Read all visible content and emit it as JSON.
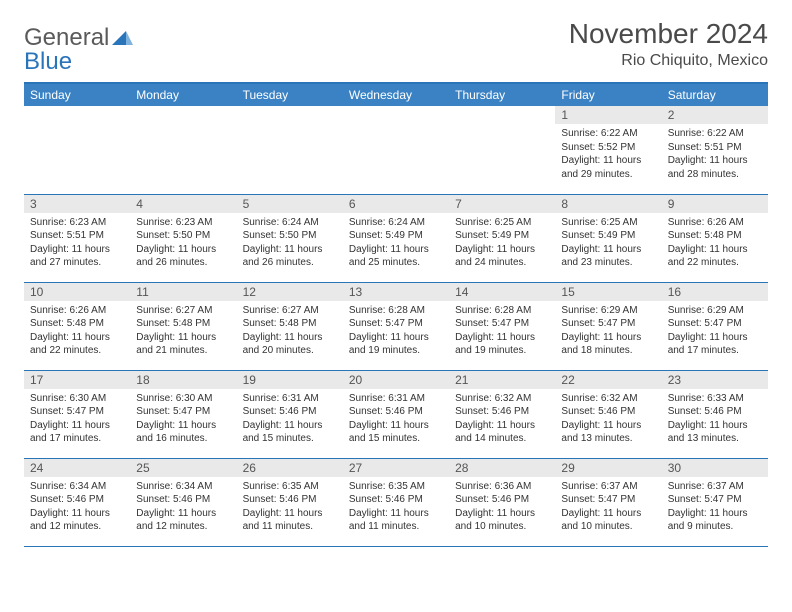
{
  "logo": {
    "word1": "General",
    "word2": "Blue"
  },
  "title": "November 2024",
  "location": "Rio Chiquito, Mexico",
  "colors": {
    "header_bg": "#3b82c4",
    "accent": "#2a74ba",
    "daynum_bg": "#e9e9e9",
    "text": "#333333"
  },
  "weekdays": [
    "Sunday",
    "Monday",
    "Tuesday",
    "Wednesday",
    "Thursday",
    "Friday",
    "Saturday"
  ],
  "weeks": [
    [
      {
        "n": "",
        "sr": "",
        "ss": "",
        "dl": ""
      },
      {
        "n": "",
        "sr": "",
        "ss": "",
        "dl": ""
      },
      {
        "n": "",
        "sr": "",
        "ss": "",
        "dl": ""
      },
      {
        "n": "",
        "sr": "",
        "ss": "",
        "dl": ""
      },
      {
        "n": "",
        "sr": "",
        "ss": "",
        "dl": ""
      },
      {
        "n": "1",
        "sr": "Sunrise: 6:22 AM",
        "ss": "Sunset: 5:52 PM",
        "dl": "Daylight: 11 hours and 29 minutes."
      },
      {
        "n": "2",
        "sr": "Sunrise: 6:22 AM",
        "ss": "Sunset: 5:51 PM",
        "dl": "Daylight: 11 hours and 28 minutes."
      }
    ],
    [
      {
        "n": "3",
        "sr": "Sunrise: 6:23 AM",
        "ss": "Sunset: 5:51 PM",
        "dl": "Daylight: 11 hours and 27 minutes."
      },
      {
        "n": "4",
        "sr": "Sunrise: 6:23 AM",
        "ss": "Sunset: 5:50 PM",
        "dl": "Daylight: 11 hours and 26 minutes."
      },
      {
        "n": "5",
        "sr": "Sunrise: 6:24 AM",
        "ss": "Sunset: 5:50 PM",
        "dl": "Daylight: 11 hours and 26 minutes."
      },
      {
        "n": "6",
        "sr": "Sunrise: 6:24 AM",
        "ss": "Sunset: 5:49 PM",
        "dl": "Daylight: 11 hours and 25 minutes."
      },
      {
        "n": "7",
        "sr": "Sunrise: 6:25 AM",
        "ss": "Sunset: 5:49 PM",
        "dl": "Daylight: 11 hours and 24 minutes."
      },
      {
        "n": "8",
        "sr": "Sunrise: 6:25 AM",
        "ss": "Sunset: 5:49 PM",
        "dl": "Daylight: 11 hours and 23 minutes."
      },
      {
        "n": "9",
        "sr": "Sunrise: 6:26 AM",
        "ss": "Sunset: 5:48 PM",
        "dl": "Daylight: 11 hours and 22 minutes."
      }
    ],
    [
      {
        "n": "10",
        "sr": "Sunrise: 6:26 AM",
        "ss": "Sunset: 5:48 PM",
        "dl": "Daylight: 11 hours and 22 minutes."
      },
      {
        "n": "11",
        "sr": "Sunrise: 6:27 AM",
        "ss": "Sunset: 5:48 PM",
        "dl": "Daylight: 11 hours and 21 minutes."
      },
      {
        "n": "12",
        "sr": "Sunrise: 6:27 AM",
        "ss": "Sunset: 5:48 PM",
        "dl": "Daylight: 11 hours and 20 minutes."
      },
      {
        "n": "13",
        "sr": "Sunrise: 6:28 AM",
        "ss": "Sunset: 5:47 PM",
        "dl": "Daylight: 11 hours and 19 minutes."
      },
      {
        "n": "14",
        "sr": "Sunrise: 6:28 AM",
        "ss": "Sunset: 5:47 PM",
        "dl": "Daylight: 11 hours and 19 minutes."
      },
      {
        "n": "15",
        "sr": "Sunrise: 6:29 AM",
        "ss": "Sunset: 5:47 PM",
        "dl": "Daylight: 11 hours and 18 minutes."
      },
      {
        "n": "16",
        "sr": "Sunrise: 6:29 AM",
        "ss": "Sunset: 5:47 PM",
        "dl": "Daylight: 11 hours and 17 minutes."
      }
    ],
    [
      {
        "n": "17",
        "sr": "Sunrise: 6:30 AM",
        "ss": "Sunset: 5:47 PM",
        "dl": "Daylight: 11 hours and 17 minutes."
      },
      {
        "n": "18",
        "sr": "Sunrise: 6:30 AM",
        "ss": "Sunset: 5:47 PM",
        "dl": "Daylight: 11 hours and 16 minutes."
      },
      {
        "n": "19",
        "sr": "Sunrise: 6:31 AM",
        "ss": "Sunset: 5:46 PM",
        "dl": "Daylight: 11 hours and 15 minutes."
      },
      {
        "n": "20",
        "sr": "Sunrise: 6:31 AM",
        "ss": "Sunset: 5:46 PM",
        "dl": "Daylight: 11 hours and 15 minutes."
      },
      {
        "n": "21",
        "sr": "Sunrise: 6:32 AM",
        "ss": "Sunset: 5:46 PM",
        "dl": "Daylight: 11 hours and 14 minutes."
      },
      {
        "n": "22",
        "sr": "Sunrise: 6:32 AM",
        "ss": "Sunset: 5:46 PM",
        "dl": "Daylight: 11 hours and 13 minutes."
      },
      {
        "n": "23",
        "sr": "Sunrise: 6:33 AM",
        "ss": "Sunset: 5:46 PM",
        "dl": "Daylight: 11 hours and 13 minutes."
      }
    ],
    [
      {
        "n": "24",
        "sr": "Sunrise: 6:34 AM",
        "ss": "Sunset: 5:46 PM",
        "dl": "Daylight: 11 hours and 12 minutes."
      },
      {
        "n": "25",
        "sr": "Sunrise: 6:34 AM",
        "ss": "Sunset: 5:46 PM",
        "dl": "Daylight: 11 hours and 12 minutes."
      },
      {
        "n": "26",
        "sr": "Sunrise: 6:35 AM",
        "ss": "Sunset: 5:46 PM",
        "dl": "Daylight: 11 hours and 11 minutes."
      },
      {
        "n": "27",
        "sr": "Sunrise: 6:35 AM",
        "ss": "Sunset: 5:46 PM",
        "dl": "Daylight: 11 hours and 11 minutes."
      },
      {
        "n": "28",
        "sr": "Sunrise: 6:36 AM",
        "ss": "Sunset: 5:46 PM",
        "dl": "Daylight: 11 hours and 10 minutes."
      },
      {
        "n": "29",
        "sr": "Sunrise: 6:37 AM",
        "ss": "Sunset: 5:47 PM",
        "dl": "Daylight: 11 hours and 10 minutes."
      },
      {
        "n": "30",
        "sr": "Sunrise: 6:37 AM",
        "ss": "Sunset: 5:47 PM",
        "dl": "Daylight: 11 hours and 9 minutes."
      }
    ]
  ]
}
